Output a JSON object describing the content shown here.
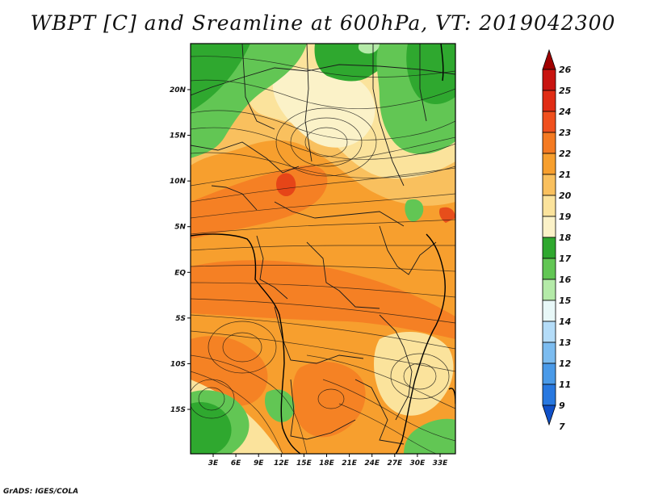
{
  "chart_data": {
    "type": "heatmap",
    "title": "WBPT [C] and Sreamline at 600hPa, VT: 2019042300",
    "variable": "WBPT [C]",
    "level": "600hPa",
    "valid_time": "2019042300",
    "xlabel": "",
    "ylabel": "",
    "x_ticks": [
      "3E",
      "6E",
      "9E",
      "12E",
      "15E",
      "18E",
      "21E",
      "24E",
      "27E",
      "30E",
      "33E"
    ],
    "x_tick_values": [
      3,
      6,
      9,
      12,
      15,
      18,
      21,
      24,
      27,
      30,
      33
    ],
    "y_ticks": [
      "20N",
      "15N",
      "10N",
      "5N",
      "EQ",
      "5S",
      "10S",
      "15S"
    ],
    "y_tick_values": [
      20,
      15,
      10,
      5,
      0,
      -5,
      -10,
      -15
    ],
    "xlim": [
      0,
      35
    ],
    "ylim": [
      -20,
      25
    ],
    "colorbar": {
      "levels": [
        26,
        25,
        24,
        23,
        22,
        21,
        20,
        19,
        18,
        17,
        16,
        15,
        14,
        13,
        12,
        11,
        9,
        7
      ],
      "colors": [
        "#a00000",
        "#c81410",
        "#e02c14",
        "#f0501e",
        "#f47a22",
        "#f79f2e",
        "#f9c05e",
        "#fbe39c",
        "#fbf2c8",
        "#2fa82f",
        "#62c654",
        "#b4eaa8",
        "#e8f8f8",
        "#b4dcf8",
        "#7cbcf0",
        "#4a9ae8",
        "#2878e0",
        "#1050c8"
      ]
    },
    "overlay": "streamlines",
    "footer": "GrADS: IGES/COLA"
  }
}
